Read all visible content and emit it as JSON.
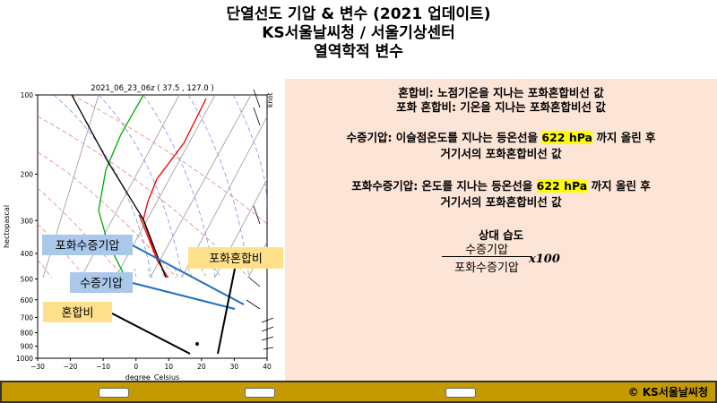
{
  "header": {
    "title_lines": [
      "단열선도 기압 & 변수 (2021 업데이트)",
      "KS서울날씨청 / 서울기상센터",
      "열역학적 변수"
    ]
  },
  "skewt": {
    "title": "2021_06_23_06z ( 37.5 , 127.0 )",
    "y_label": "hectopascal",
    "x_label": "degree_Celsius",
    "unit_label": "knot",
    "log_y": true,
    "ylim": [
      1000,
      100
    ],
    "xlim": [
      -30,
      40
    ],
    "yticks": [
      100,
      200,
      300,
      400,
      500,
      600,
      700,
      800,
      900,
      1000
    ],
    "xticks": [
      {
        "value": -30,
        "label": "−30"
      },
      {
        "value": -20,
        "label": "−20"
      },
      {
        "value": -10,
        "label": "−10"
      },
      0,
      10,
      20,
      30,
      40
    ]
  },
  "callouts": [
    {
      "label": "포화수증기압",
      "color": "#a9c8ea"
    },
    {
      "label": "수증기압",
      "color": "#a9c8ea"
    },
    {
      "label": "혼합비",
      "color": "#ffe08a"
    },
    {
      "label": "포화혼합비",
      "color": "#ffe08a"
    }
  ],
  "notes": [
    [
      {
        "text": "혼합비: 노점기온을 지나는 포화혼합비선 값"
      }
    ],
    [
      {
        "text": "포화 혼합비: 기온을 지나는 포화혼합비선 값"
      }
    ],
    [
      {
        "text": "수증기압: 이슬점온도를 지나는 등온선을 "
      },
      {
        "text": "622 hPa",
        "highlight": true
      },
      {
        "text": " 까지 올린 후"
      }
    ],
    [
      {
        "text": "거기서의 포화혼합비선 값"
      }
    ],
    [
      {
        "text": "포화수증기압: 온도를 지나는 등온선을 "
      },
      {
        "text": "622 hPa",
        "highlight": true
      },
      {
        "text": " 까지 올린 후"
      }
    ],
    [
      {
        "text": "거기서의 포화혼합비선 값"
      }
    ]
  ],
  "formula": {
    "title": "상대 습도",
    "numerator": "수증기압",
    "denominator": "포화수증기압",
    "multiplier": "x100"
  },
  "footer": {
    "credit": "© KS서울날씨청"
  }
}
